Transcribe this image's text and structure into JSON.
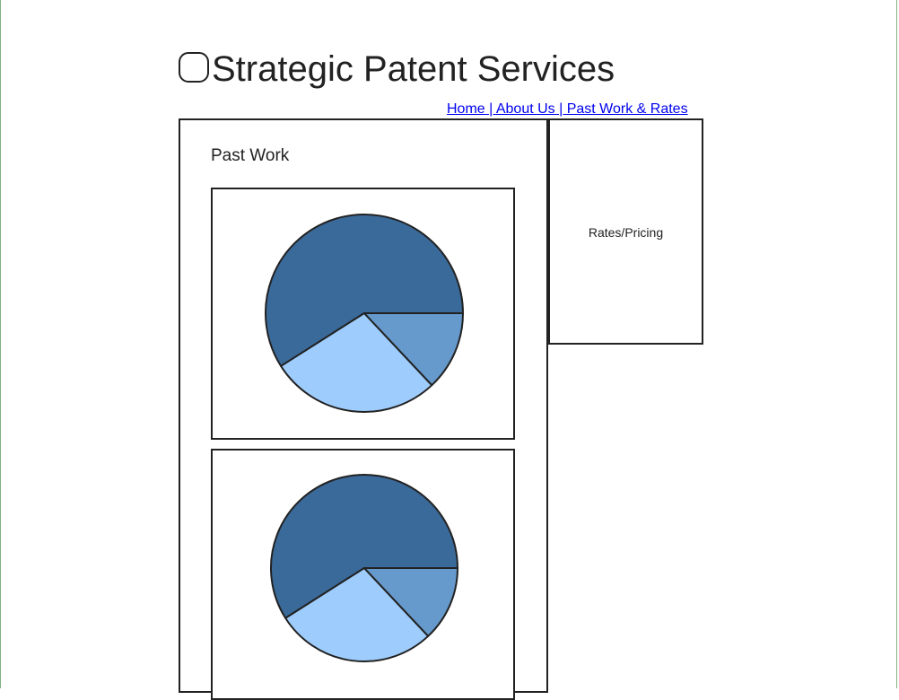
{
  "header": {
    "title": "Strategic Patent Services"
  },
  "nav": {
    "home": "Home",
    "separator": " | ",
    "about": "About Us",
    "past_work_rates": "Past Work & Rates"
  },
  "main": {
    "heading": "Past Work"
  },
  "sidebar": {
    "label": "Rates/Pricing"
  },
  "colors": {
    "dark_slice": "#3a6a9a",
    "light_slice": "#9ecdfd",
    "mid_slice": "#6699cc",
    "nav_link": "#0000ee"
  },
  "chart_data": [
    {
      "type": "pie",
      "values": [
        59,
        28,
        13
      ],
      "colors": [
        "#3a6a9a",
        "#9ecdfd",
        "#6699cc"
      ]
    },
    {
      "type": "pie",
      "values": [
        59,
        28,
        13
      ],
      "colors": [
        "#3a6a9a",
        "#9ecdfd",
        "#6699cc"
      ]
    }
  ]
}
